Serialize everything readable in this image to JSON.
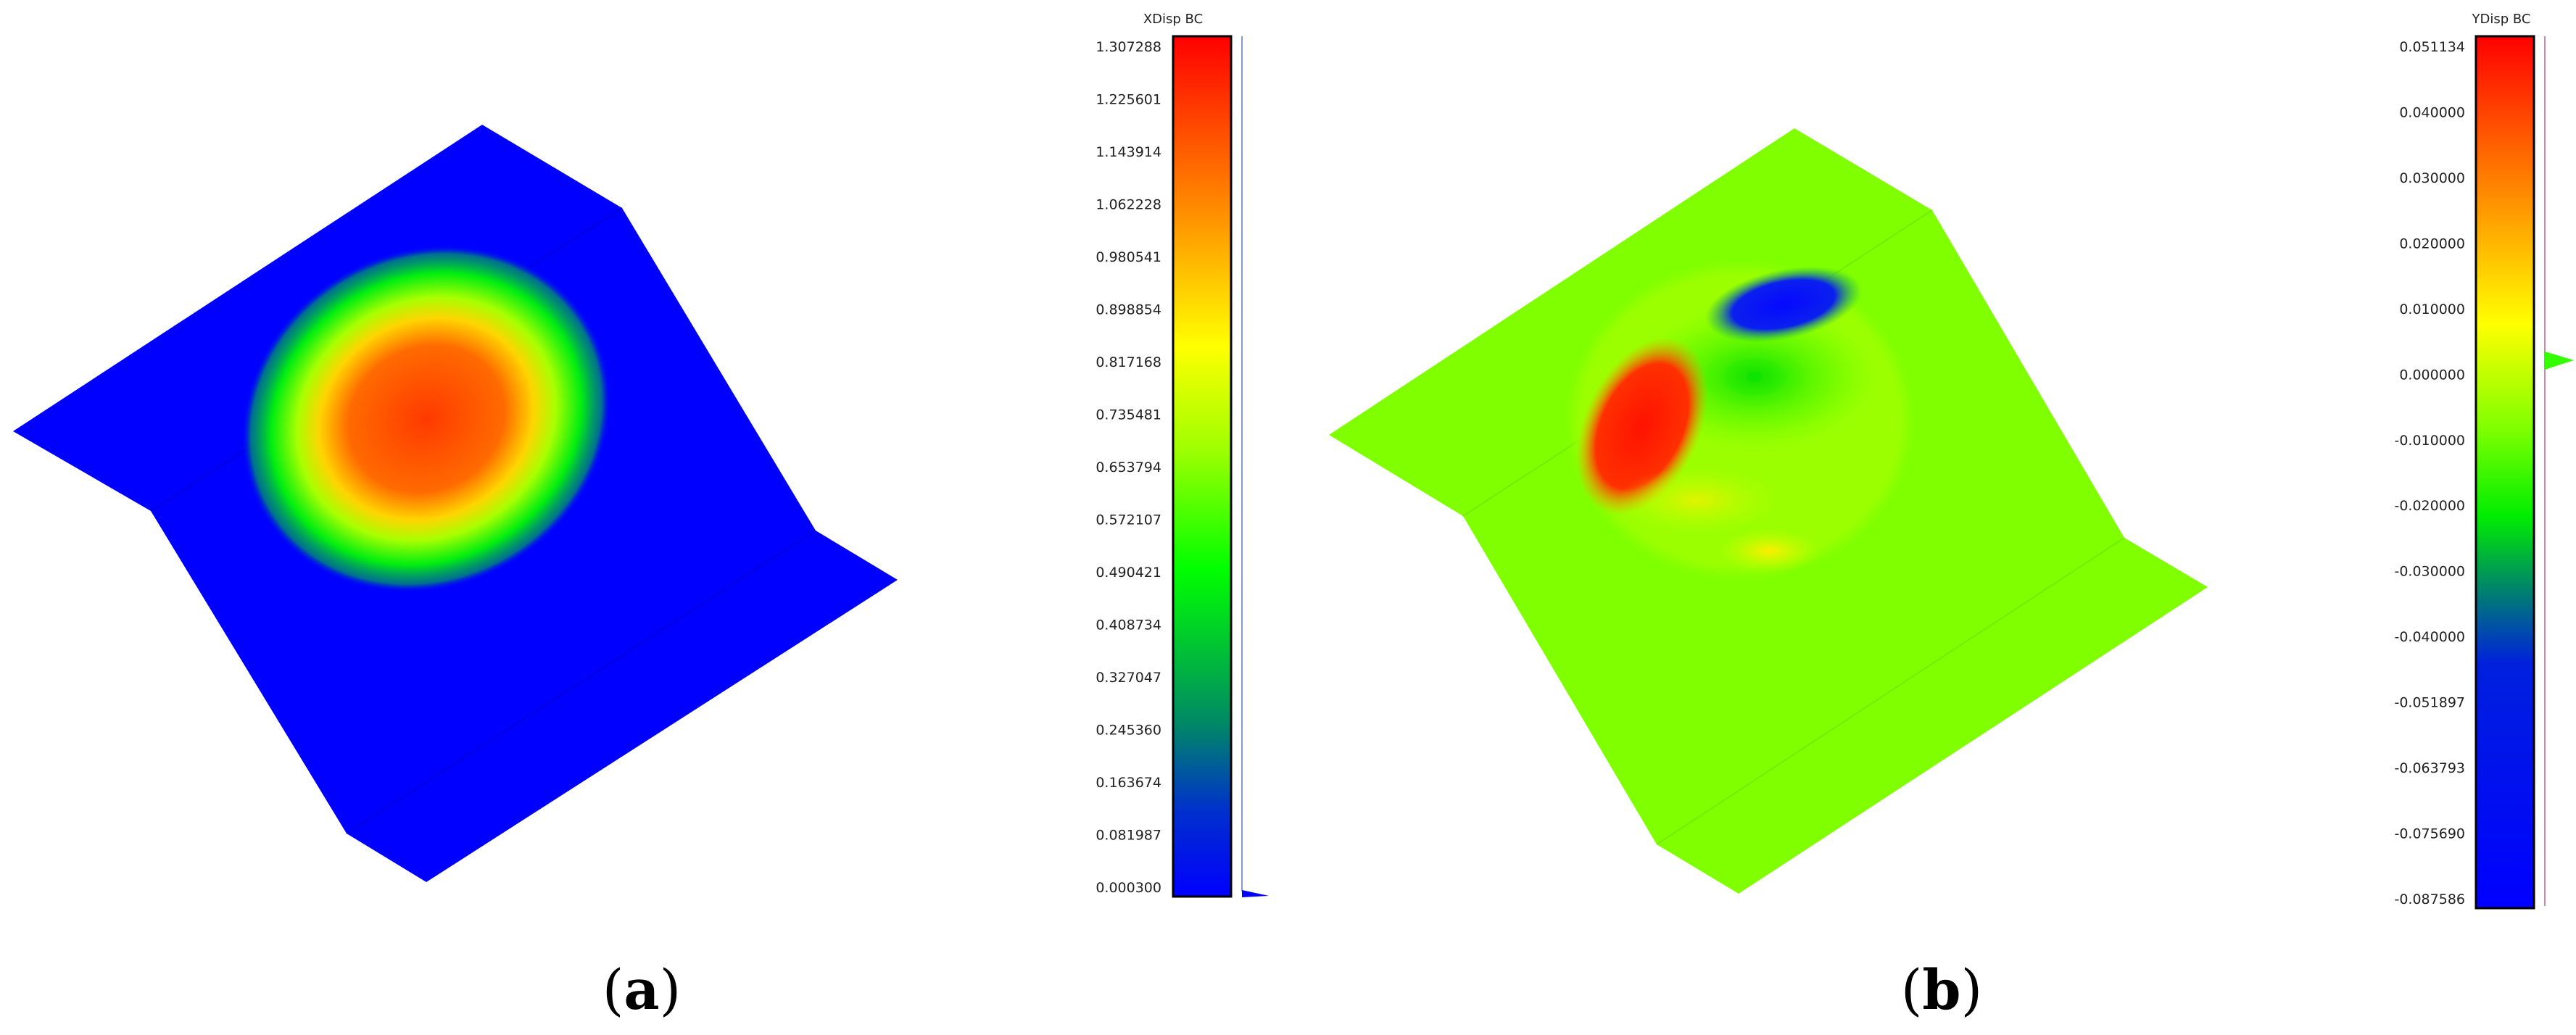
{
  "panel_a": {
    "caption_letter": "a",
    "colorbar": {
      "title": "XDisp BC",
      "ticks": [
        "1.307288",
        "1.225601",
        "1.143914",
        "1.062228",
        "0.980541",
        "0.898854",
        "0.817168",
        "0.735481",
        "0.653794",
        "0.572107",
        "0.490421",
        "0.408734",
        "0.327047",
        "0.245360",
        "0.163674",
        "0.081987",
        "0.000300"
      ]
    },
    "colors": {
      "background": "#0000ff",
      "hot": "#ff2000",
      "warm": "#ffd400",
      "mid": "#00ff00"
    }
  },
  "panel_b": {
    "caption_letter": "b",
    "colorbar": {
      "title": "YDisp BC",
      "ticks": [
        "0.051134",
        "0.040000",
        "0.030000",
        "0.020000",
        "0.010000",
        "0.000000",
        "-0.010000",
        "-0.020000",
        "-0.030000",
        "-0.040000",
        "-0.051897",
        "-0.063793",
        "-0.075690",
        "-0.087586"
      ]
    },
    "colors": {
      "background": "#7fff00",
      "hot": "#ff1a00",
      "cold": "#0a10ff"
    }
  }
}
